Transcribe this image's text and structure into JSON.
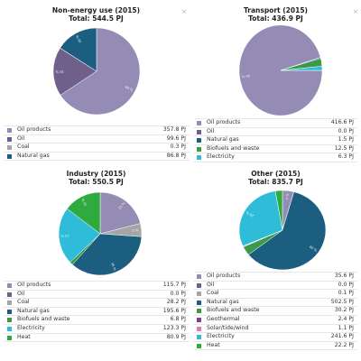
{
  "charts": [
    {
      "title": "Non-energy use (2015)",
      "total": "Total: 544.5 PJ",
      "close_icon": "×",
      "chart_data": {
        "type": "pie",
        "title": "Non-energy use (2015)",
        "unit": "PJ",
        "categories": [
          "Oil products",
          "Oil",
          "Coal",
          "Natural gas"
        ],
        "values": [
          357.8,
          99.6,
          0.3,
          86.8
        ],
        "slice_labels": [
          "66 %",
          "18 %",
          "",
          "16 %"
        ],
        "colors": [
          "#948cb4",
          "#6e5f8b",
          "#a5a5a5",
          "#1b5e7f"
        ]
      },
      "legend": [
        {
          "name": "Oil products",
          "value": "357.8 PJ"
        },
        {
          "name": "Oil",
          "value": "99.6 PJ"
        },
        {
          "name": "Coal",
          "value": "0.3 PJ"
        },
        {
          "name": "Natural gas",
          "value": "86.8 PJ"
        }
      ]
    },
    {
      "title": "Transport (2015)",
      "total": "Total: 436.9 PJ",
      "close_icon": "×",
      "chart_data": {
        "type": "pie",
        "title": "Transport (2015)",
        "unit": "PJ",
        "categories": [
          "Oil products",
          "Oil",
          "Natural gas",
          "Biofuels and waste",
          "Electricity"
        ],
        "values": [
          416.6,
          0.0,
          1.5,
          12.5,
          6.3
        ],
        "slice_labels": [
          "95 %",
          "",
          "",
          "",
          ""
        ],
        "colors": [
          "#948cb4",
          "#6e5f8b",
          "#1b5e7f",
          "#3a9a4a",
          "#2fbcd8"
        ]
      },
      "legend": [
        {
          "name": "Oil products",
          "value": "416.6 PJ"
        },
        {
          "name": "Oil",
          "value": "0.0 PJ"
        },
        {
          "name": "Natural gas",
          "value": "1.5 PJ"
        },
        {
          "name": "Biofuels and waste",
          "value": "12.5 PJ"
        },
        {
          "name": "Electricity",
          "value": "6.3 PJ"
        }
      ]
    },
    {
      "title": "Industry (2015)",
      "total": "Total: 550.5 PJ",
      "close_icon": "",
      "chart_data": {
        "type": "pie",
        "title": "Industry (2015)",
        "unit": "PJ",
        "categories": [
          "Oil products",
          "Oil",
          "Coal",
          "Natural gas",
          "Biofuels and waste",
          "Electricity",
          "Heat"
        ],
        "values": [
          115.7,
          0.0,
          28.2,
          195.6,
          6.8,
          123.3,
          80.9
        ],
        "slice_labels": [
          "21 %",
          "",
          "5 %",
          "36 %",
          "",
          "22 %",
          "15 %"
        ],
        "colors": [
          "#948cb4",
          "#6e5f8b",
          "#a5a5a5",
          "#1b5e7f",
          "#3a9a4a",
          "#2fbcd8",
          "#2eaa3e"
        ]
      },
      "legend": [
        {
          "name": "Oil products",
          "value": "115.7 PJ"
        },
        {
          "name": "Oil",
          "value": "0.0 PJ"
        },
        {
          "name": "Coal",
          "value": "28.2 PJ"
        },
        {
          "name": "Natural gas",
          "value": "195.6 PJ"
        },
        {
          "name": "Biofuels and waste",
          "value": "6.8 PJ"
        },
        {
          "name": "Electricity",
          "value": "123.3 PJ"
        },
        {
          "name": "Heat",
          "value": "80.9 PJ"
        }
      ]
    },
    {
      "title": "Other (2015)",
      "total": "Total: 835.7 PJ",
      "close_icon": "",
      "chart_data": {
        "type": "pie",
        "title": "Other (2015)",
        "unit": "PJ",
        "categories": [
          "Oil products",
          "Oil",
          "Coal",
          "Natural gas",
          "Biofuels and waste",
          "Geothermal",
          "Solar/tide/wind",
          "Electricity",
          "Heat"
        ],
        "values": [
          35.6,
          0.0,
          0.1,
          502.5,
          30.2,
          2.4,
          1.1,
          241.6,
          22.2
        ],
        "slice_labels": [
          "4 %",
          "",
          "",
          "60 %",
          "",
          "",
          "",
          "29 %",
          ""
        ],
        "colors": [
          "#948cb4",
          "#6e5f8b",
          "#a5a5a5",
          "#1b5e7f",
          "#3a9a4a",
          "#7e3f8f",
          "#e07ab8",
          "#2fbcd8",
          "#2eaa3e"
        ]
      },
      "legend": [
        {
          "name": "Oil products",
          "value": "35.6 PJ"
        },
        {
          "name": "Oil",
          "value": "0.0 PJ"
        },
        {
          "name": "Coal",
          "value": "0.1 PJ"
        },
        {
          "name": "Natural gas",
          "value": "502.5 PJ"
        },
        {
          "name": "Biofuels and waste",
          "value": "30.2 PJ"
        },
        {
          "name": "Geothermal",
          "value": "2.4 PJ"
        },
        {
          "name": "Solar/tide/wind",
          "value": "1.1 PJ"
        },
        {
          "name": "Electricity",
          "value": "241.6 PJ"
        },
        {
          "name": "Heat",
          "value": "22.2 PJ"
        }
      ]
    }
  ]
}
